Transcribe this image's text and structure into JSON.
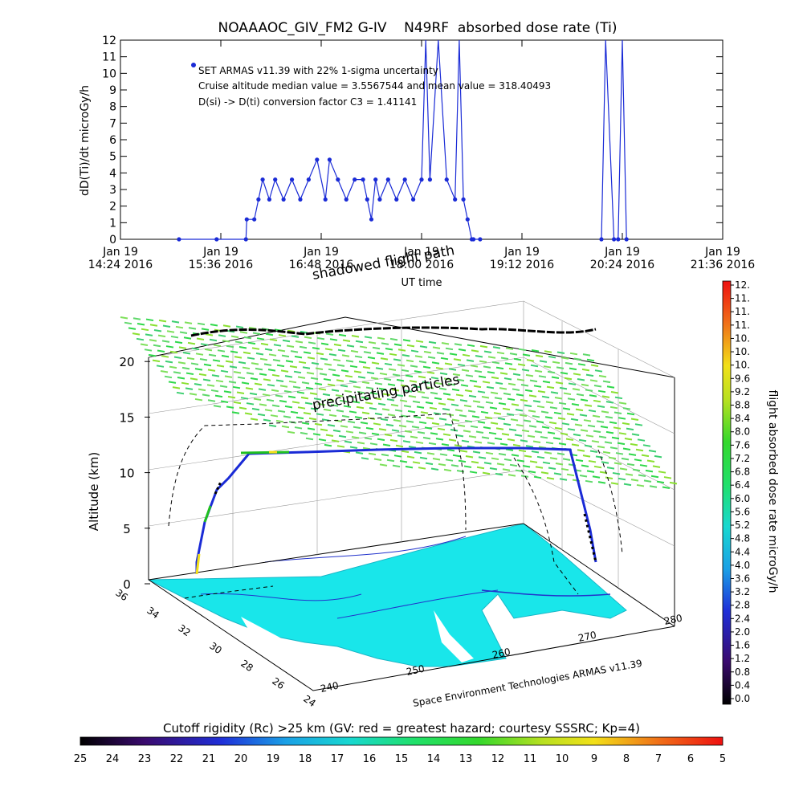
{
  "chart_data": [
    {
      "type": "line",
      "title": "NOAAAOC_GIV_FM2 G-IV    N49RF  absorbed dose rate (Ti)",
      "ylabel": "dD(Ti)/dt microGy/h",
      "xlabel": "UT time",
      "ylim": [
        0,
        12
      ],
      "yticks": [
        "0",
        "1",
        "2",
        "3",
        "4",
        "5",
        "6",
        "7",
        "8",
        "9",
        "10",
        "11",
        "12"
      ],
      "xtick_dates": [
        "Jan 19",
        "Jan 19",
        "Jan 19",
        "Jan 19",
        "Jan 19",
        "Jan 19",
        "Jan 19"
      ],
      "xtick_times": [
        "14:24 2016",
        "15:36 2016",
        "16:48 2016",
        "18:00 2016",
        "19:12 2016",
        "20:24 2016",
        "21:36 2016"
      ],
      "annotations": [
        "SET ARMAS v11.39 with 22% 1-sigma uncertainty",
        "Cruise altitude median value = 3.5567544 and mean value = 318.40493",
        "D(si) -> D(ti) conversion factor C3 = 1.41141"
      ],
      "color": "#1a2bd6",
      "series": [
        {
          "x": [
            15.1,
            15.55,
            15.9,
            15.91,
            16.0,
            16.05,
            16.1,
            16.18,
            16.25,
            16.35,
            16.45,
            16.55,
            16.65,
            16.75,
            16.85,
            16.9,
            17.0,
            17.1,
            17.2,
            17.3,
            17.35,
            17.4,
            17.45,
            17.5,
            17.6,
            17.7,
            17.8,
            17.9,
            18.0,
            18.05,
            18.1,
            18.2,
            18.3,
            18.4,
            18.45,
            18.5,
            18.55,
            18.6,
            18.62,
            18.7
          ],
          "y": [
            0,
            0,
            0,
            1.2,
            1.2,
            2.4,
            3.6,
            2.4,
            3.6,
            2.4,
            3.6,
            2.4,
            3.6,
            4.8,
            2.4,
            4.8,
            3.6,
            2.4,
            3.6,
            3.6,
            2.4,
            1.2,
            3.6,
            2.4,
            3.6,
            2.4,
            3.6,
            2.4,
            3.6,
            12,
            3.6,
            12,
            3.6,
            2.4,
            12,
            2.4,
            1.2,
            0,
            0,
            0
          ]
        },
        {
          "x": [
            20.15,
            20.2,
            20.3,
            20.35,
            20.4,
            20.45
          ],
          "y": [
            0,
            12,
            0,
            0,
            12,
            0
          ]
        }
      ]
    },
    {
      "type": "scatter",
      "title": "",
      "ylabel": "Altitude (km)",
      "zticks": [
        "0",
        "5",
        "10",
        "15",
        "20"
      ],
      "lat_ticks": [
        "36",
        "34",
        "32",
        "30",
        "28",
        "26",
        "24"
      ],
      "lon_ticks": [
        "240",
        "250",
        "260",
        "270",
        "280"
      ],
      "labels": {
        "shadowed": "shadowed flight path",
        "precip": "precipitating particles",
        "credit": "Space Environment Technologies ARMAS v11.39"
      }
    },
    {
      "type": "heatmap",
      "colorbar_label": "flight absorbed dose rate microGy/h",
      "ticks": [
        "12.",
        "11.",
        "11.",
        "11.",
        "10.",
        "10.",
        "10.",
        "9.6",
        "9.2",
        "8.8",
        "8.4",
        "8.0",
        "7.6",
        "7.2",
        "6.8",
        "6.4",
        "6.0",
        "5.6",
        "5.2",
        "4.8",
        "4.4",
        "4.0",
        "3.6",
        "3.2",
        "2.8",
        "2.4",
        "2.0",
        "1.6",
        "1.2",
        "0.8",
        "0.4",
        "0.0"
      ]
    },
    {
      "type": "heatmap",
      "colorbar_label": "Cutoff rigidity (Rc) >25 km (GV: red = greatest hazard; courtesy SSSRC; Kp=4)",
      "ticks": [
        "25",
        "24",
        "23",
        "22",
        "21",
        "20",
        "19",
        "18",
        "17",
        "16",
        "15",
        "14",
        "13",
        "12",
        "11",
        "10",
        "9",
        "8",
        "7",
        "6",
        "5"
      ]
    }
  ]
}
